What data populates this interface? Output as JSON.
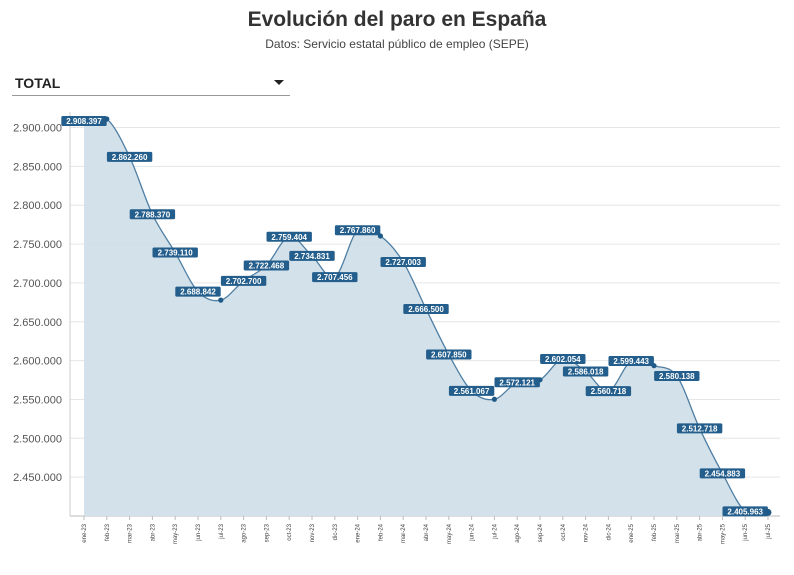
{
  "header": {
    "title": "Evolución del paro en España",
    "subtitle": "Datos: Servicio estatal público de empleo (SEPE)"
  },
  "selector": {
    "selected": "TOTAL",
    "icon": "caret-down-icon"
  },
  "colors": {
    "line": "#4f7ea3",
    "area": "#d1dfe9",
    "label_bg": "#235e8c",
    "point": "#1f5a88"
  },
  "chart_data": {
    "type": "area",
    "categories": [
      "ene-23",
      "feb-23",
      "mar-23",
      "abr-23",
      "may-23",
      "jun-23",
      "jul-23",
      "ago-23",
      "sep-23",
      "oct-23",
      "nov-23",
      "dic-23",
      "ene-24",
      "feb-24",
      "mar-24",
      "abr-24",
      "may-24",
      "jun-24",
      "jul-24",
      "ago-24",
      "sep-24",
      "oct-24",
      "nov-24",
      "dic-24",
      "ene-25",
      "feb-25",
      "mar-25",
      "abr-25",
      "may-25",
      "jun-25",
      "jul-25"
    ],
    "values": [
      2908397,
      2911015,
      2862260,
      2788370,
      2739110,
      2688842,
      2677874,
      2702700,
      2722468,
      2759404,
      2734831,
      2707456,
      2767860,
      2760408,
      2727003,
      2666500,
      2607850,
      2561067,
      2550237,
      2572121,
      2575285,
      2602054,
      2586018,
      2560718,
      2599443,
      2593449,
      2580138,
      2512718,
      2454883,
      2405963,
      2404606
    ],
    "value_labels": [
      "2.908.397",
      "",
      "2.862.260",
      "2.788.370",
      "2.739.110",
      "2.688.842",
      "",
      "2.702.700",
      "2.722.468",
      "2.759.404",
      "2.734.831",
      "2.707.456",
      "2.767.860",
      "",
      "2.727.003",
      "2.666.500",
      "2.607.850",
      "2.561.067",
      "",
      "2.572.121",
      "",
      "2.602.054",
      "2.586.018",
      "2.560.718",
      "2.599.443",
      "",
      "2.580.138",
      "2.512.718",
      "2.454.883",
      "2.405.963",
      ""
    ],
    "yticks": [
      "2.450.000",
      "2.500.000",
      "2.550.000",
      "2.600.000",
      "2.650.000",
      "2.700.000",
      "2.750.000",
      "2.800.000",
      "2.850.000",
      "2.900.000"
    ],
    "ytick_values": [
      2450000,
      2500000,
      2550000,
      2600000,
      2650000,
      2700000,
      2750000,
      2800000,
      2850000,
      2900000
    ],
    "ylim": [
      2400000,
      2920000
    ],
    "grid": true,
    "xlabel": "",
    "ylabel": ""
  }
}
